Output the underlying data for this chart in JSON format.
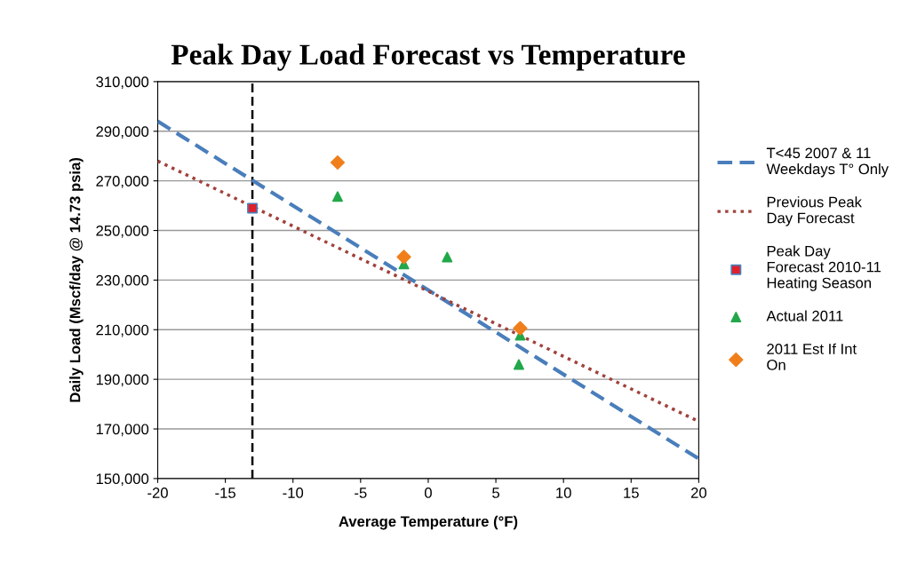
{
  "chart_data": {
    "type": "scatter",
    "title": "Peak Day Load Forecast vs Temperature",
    "xlabel": "Average Temperature (°F)",
    "ylabel": "Daily Load (Mscf/day @ 14.73 psia)",
    "xlim": [
      -20,
      20
    ],
    "xticks": [
      -20,
      -15,
      -10,
      -5,
      0,
      5,
      10,
      15,
      20
    ],
    "ylim": [
      150000,
      310000
    ],
    "yticks": [
      {
        "value": 150000,
        "label": "150,000"
      },
      {
        "value": 170000,
        "label": "170,000"
      },
      {
        "value": 190000,
        "label": "190,000"
      },
      {
        "value": 210000,
        "label": "210,000"
      },
      {
        "value": 230000,
        "label": "230,000"
      },
      {
        "value": 250000,
        "label": "250,000"
      },
      {
        "value": 270000,
        "label": "270,000"
      },
      {
        "value": 290000,
        "label": "290,000"
      },
      {
        "value": 310000,
        "label": "310,000"
      }
    ],
    "grid": "y",
    "legend": "right",
    "ref_lines": [
      {
        "axis": "x",
        "value": -13,
        "color": "#000000",
        "line_style": "dashed"
      }
    ],
    "series": [
      {
        "name": "T<45 2007 & 11 Weekdays T° Only",
        "type": "line",
        "line_style": "dashed",
        "color": "#4a7ebb",
        "x": [
          -20,
          20
        ],
        "values": [
          294000,
          158000
        ]
      },
      {
        "name": "Previous Peak Day Forecast",
        "type": "line",
        "line_style": "dotted",
        "color": "#a0413c",
        "x": [
          -20,
          20
        ],
        "values": [
          278000,
          173000
        ]
      },
      {
        "name": "Peak Day Forecast 2010-11 Heating Season",
        "marker": "square",
        "color": "#e0202a",
        "x": [
          -13
        ],
        "values": [
          259000
        ]
      },
      {
        "name": "Actual 2011",
        "marker": "triangle",
        "color": "#22a84a",
        "x": [
          -6.7,
          -1.8,
          1.4,
          6.8,
          6.7
        ],
        "values": [
          263700,
          236500,
          239300,
          207800,
          196000
        ]
      },
      {
        "name": "2011 Est If Int On",
        "marker": "diamond",
        "color": "#f07f1b",
        "x": [
          -6.7,
          -1.8,
          6.8
        ],
        "values": [
          277400,
          239300,
          210600
        ]
      }
    ]
  }
}
